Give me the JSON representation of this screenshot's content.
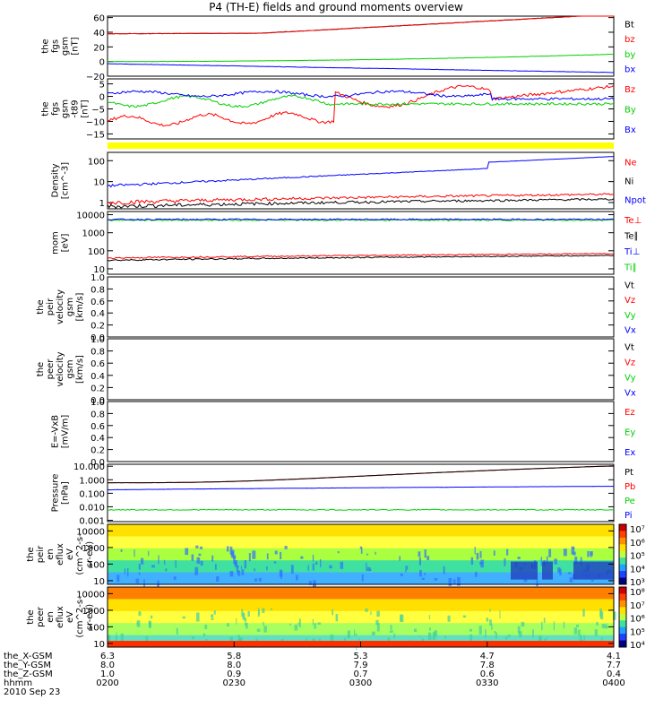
{
  "title": "P4 (TH-E) fields and ground moments overview",
  "colors": {
    "black": "#000000",
    "red": "#ff0000",
    "green": "#00d000",
    "blue": "#0000ff",
    "yellow": "#ffff00"
  },
  "panels": [
    {
      "id": "p1",
      "ylabel": [
        "the",
        "fgs",
        "gsm",
        "[nT]"
      ],
      "ticks": [
        {
          "v": 60,
          "t": "60"
        },
        {
          "v": 40,
          "t": "40"
        },
        {
          "v": 20,
          "t": "20"
        },
        {
          "v": 0,
          "t": "0"
        },
        {
          "v": -20,
          "t": "−20"
        }
      ],
      "ymin": -20,
      "ymax": 62,
      "legend": [
        {
          "t": "Bt",
          "c": "black"
        },
        {
          "t": "bz",
          "c": "red"
        },
        {
          "t": "by",
          "c": "green"
        },
        {
          "t": "bx",
          "c": "blue"
        }
      ]
    },
    {
      "id": "p2",
      "ylabel": [
        "the",
        "fgs",
        "gsm",
        "-t89"
      ],
      "ylabel2": "[nT]",
      "ticks": [
        {
          "v": 5,
          "t": "5"
        },
        {
          "v": 0,
          "t": "0"
        },
        {
          "v": -5,
          "t": "−5"
        },
        {
          "v": -10,
          "t": "−10"
        },
        {
          "v": -15,
          "t": "−15"
        }
      ],
      "ymin": -17,
      "ymax": 7,
      "legend": [
        {
          "t": "Bz",
          "c": "red"
        },
        {
          "t": "By",
          "c": "green"
        },
        {
          "t": "Bx",
          "c": "blue"
        }
      ]
    },
    {
      "id": "p3",
      "ylabel": [
        "Density",
        "[cm^-3]"
      ],
      "ticks": [
        {
          "v": 100,
          "t": "100"
        },
        {
          "v": 10,
          "t": "10"
        },
        {
          "v": 1,
          "t": "1"
        }
      ],
      "log": true,
      "ymin": 0.5,
      "ymax": 250,
      "legend": [
        {
          "t": "Ne",
          "c": "red"
        },
        {
          "t": "Ni",
          "c": "black"
        },
        {
          "t": "Npot",
          "c": "blue"
        }
      ]
    },
    {
      "id": "p4",
      "ylabel": [
        "mom",
        "[eV]"
      ],
      "ticks": [
        {
          "v": 10000,
          "t": "10000"
        },
        {
          "v": 1000,
          "t": "1000"
        },
        {
          "v": 100,
          "t": "100"
        },
        {
          "v": 10,
          "t": "10"
        }
      ],
      "log": true,
      "ymin": 5,
      "ymax": 15000,
      "legend": [
        {
          "t": "Te⊥",
          "c": "red"
        },
        {
          "t": "Te∥",
          "c": "black"
        },
        {
          "t": "Ti⊥",
          "c": "blue"
        },
        {
          "t": "Ti∥",
          "c": "green"
        }
      ]
    },
    {
      "id": "p5",
      "ylabel": [
        "the",
        "peir",
        "velocity",
        "gsm",
        "[km/s]"
      ],
      "ticks": [
        {
          "v": 1.0,
          "t": "1.0"
        },
        {
          "v": 0.8,
          "t": "0.8"
        },
        {
          "v": 0.6,
          "t": "0.6"
        },
        {
          "v": 0.4,
          "t": "0.4"
        },
        {
          "v": 0.2,
          "t": "0.2"
        },
        {
          "v": 0.0,
          "t": "0.0"
        }
      ],
      "ymin": 0,
      "ymax": 1,
      "legend": [
        {
          "t": "Vt",
          "c": "black"
        },
        {
          "t": "Vz",
          "c": "red"
        },
        {
          "t": "Vy",
          "c": "green"
        },
        {
          "t": "Vx",
          "c": "blue"
        }
      ]
    },
    {
      "id": "p6",
      "ylabel": [
        "the",
        "peer",
        "velocity",
        "gsm",
        "[km/s]"
      ],
      "ticks": [
        {
          "v": 1.0,
          "t": "1.0"
        },
        {
          "v": 0.8,
          "t": "0.8"
        },
        {
          "v": 0.6,
          "t": "0.6"
        },
        {
          "v": 0.4,
          "t": "0.4"
        },
        {
          "v": 0.2,
          "t": "0.2"
        },
        {
          "v": 0.0,
          "t": "0.0"
        }
      ],
      "ymin": 0,
      "ymax": 1,
      "legend": [
        {
          "t": "Vt",
          "c": "black"
        },
        {
          "t": "Vz",
          "c": "red"
        },
        {
          "t": "Vy",
          "c": "green"
        },
        {
          "t": "Vx",
          "c": "blue"
        }
      ]
    },
    {
      "id": "p7",
      "ylabel": [
        "E=-VxB",
        "[mV/m]"
      ],
      "ticks": [
        {
          "v": 1.0,
          "t": "1.0"
        },
        {
          "v": 0.8,
          "t": "0.8"
        },
        {
          "v": 0.6,
          "t": "0.6"
        },
        {
          "v": 0.4,
          "t": "0.4"
        },
        {
          "v": 0.2,
          "t": "0.2"
        },
        {
          "v": 0.0,
          "t": "0.0"
        }
      ],
      "ymin": 0,
      "ymax": 1,
      "legend": [
        {
          "t": "Ez",
          "c": "red"
        },
        {
          "t": "Ey",
          "c": "green"
        },
        {
          "t": "Ex",
          "c": "blue"
        }
      ]
    },
    {
      "id": "p8",
      "ylabel": [
        "Pressure",
        "[nPa]"
      ],
      "ticks": [
        {
          "v": 10,
          "t": "10.000"
        },
        {
          "v": 1,
          "t": "1.000"
        },
        {
          "v": 0.1,
          "t": "0.100"
        },
        {
          "v": 0.01,
          "t": "0.010"
        },
        {
          "v": 0.001,
          "t": "0.001"
        }
      ],
      "log": true,
      "ymin": 0.0008,
      "ymax": 14,
      "legend": [
        {
          "t": "Pt",
          "c": "black"
        },
        {
          "t": "Pb",
          "c": "red"
        },
        {
          "t": "Pe",
          "c": "green"
        },
        {
          "t": "Pi",
          "c": "blue"
        }
      ]
    },
    {
      "id": "p9",
      "ylabel": [
        "the",
        "peir",
        "en",
        "eflux",
        "eV",
        "(cm^2-s-",
        "sr-eV)"
      ],
      "ticks": [
        {
          "v": 10000,
          "t": "10000"
        },
        {
          "v": 1000,
          "t": "1000"
        },
        {
          "v": 100,
          "t": "100"
        },
        {
          "v": 10,
          "t": "10"
        }
      ],
      "log": true,
      "ymin": 6,
      "ymax": 25000,
      "cbar": [
        "10⁷",
        "10⁶",
        "10⁵",
        "10⁴",
        "10³"
      ]
    },
    {
      "id": "p10",
      "ylabel": [
        "the",
        "peer",
        "en",
        "eflux",
        "eV",
        "(cm^2-s-",
        "sr-eV)"
      ],
      "ticks": [
        {
          "v": 10000,
          "t": "10000"
        },
        {
          "v": 1000,
          "t": "1000"
        },
        {
          "v": 100,
          "t": "100"
        },
        {
          "v": 10,
          "t": "10"
        }
      ],
      "log": true,
      "ymin": 6,
      "ymax": 25000,
      "cbar": [
        "10⁸",
        "10⁷",
        "10⁶",
        "10⁵",
        "10⁴"
      ]
    }
  ],
  "xaxis": {
    "rows": [
      {
        "label": "the_X-GSM",
        "values": [
          "6.3",
          "5.8",
          "5.3",
          "4.7",
          "4.1"
        ]
      },
      {
        "label": "the_Y-GSM",
        "values": [
          "8.0",
          "8.0",
          "7.9",
          "7.8",
          "7.7"
        ]
      },
      {
        "label": "the_Z-GSM",
        "values": [
          "1.0",
          "0.9",
          "0.7",
          "0.6",
          "0.4"
        ]
      },
      {
        "label": "hhmm",
        "values": [
          "0200",
          "0230",
          "0300",
          "0330",
          "0400"
        ]
      }
    ],
    "date": "2010 Sep 23"
  },
  "chart_data": {
    "type": "line",
    "title": "P4 (TH-E) fields and ground moments overview",
    "x": [
      "0200",
      "0230",
      "0300",
      "0330",
      "0400"
    ],
    "series": [
      {
        "name": "Bt",
        "values": [
          38,
          40,
          48,
          58,
          63
        ]
      },
      {
        "name": "bz",
        "values": [
          38,
          40,
          48,
          58,
          63
        ]
      },
      {
        "name": "by",
        "values": [
          0,
          1,
          3,
          5,
          10
        ]
      },
      {
        "name": "bx",
        "values": [
          -3,
          -4,
          -6,
          -10,
          -15
        ]
      },
      {
        "name": "Bz",
        "values": [
          -10,
          -8,
          0,
          2,
          5
        ]
      },
      {
        "name": "By",
        "values": [
          -1,
          -2,
          -3,
          -3,
          -3
        ]
      },
      {
        "name": "Bx",
        "values": [
          1,
          1,
          0,
          -1,
          -1
        ]
      },
      {
        "name": "Ne",
        "values": [
          1.0,
          1.2,
          2.0,
          2.5,
          3.0
        ]
      },
      {
        "name": "Ni",
        "values": [
          0.6,
          0.8,
          1.2,
          1.5,
          1.5
        ]
      },
      {
        "name": "Npot",
        "values": [
          6,
          9,
          15,
          50,
          80
        ]
      },
      {
        "name": "Pt",
        "values": [
          0.6,
          0.8,
          1.5,
          2.5,
          10
        ]
      },
      {
        "name": "Pb",
        "values": [
          0.6,
          0.8,
          1.5,
          2.5,
          10
        ]
      },
      {
        "name": "Pe",
        "values": [
          0.005,
          0.006,
          0.007,
          0.006,
          0.006
        ]
      },
      {
        "name": "Pi",
        "values": [
          0.18,
          0.2,
          0.22,
          0.26,
          0.3
        ]
      }
    ]
  }
}
